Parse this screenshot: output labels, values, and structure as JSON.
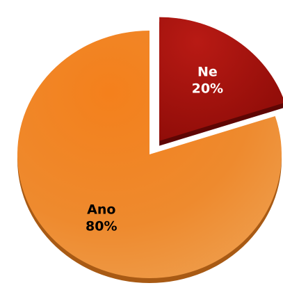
{
  "chart_data": {
    "type": "pie",
    "exploded": [
      "Ne"
    ],
    "style": "3d",
    "slices": [
      {
        "name": "Ano",
        "value": 80,
        "label_name": "Ano",
        "label_value": "80%",
        "color": "#EE8A2E",
        "label_color": "#000000"
      },
      {
        "name": "Ne",
        "value": 20,
        "label_name": "Ne",
        "label_value": "20%",
        "color": "#B0140E",
        "label_color": "#FFFFFF"
      }
    ]
  }
}
